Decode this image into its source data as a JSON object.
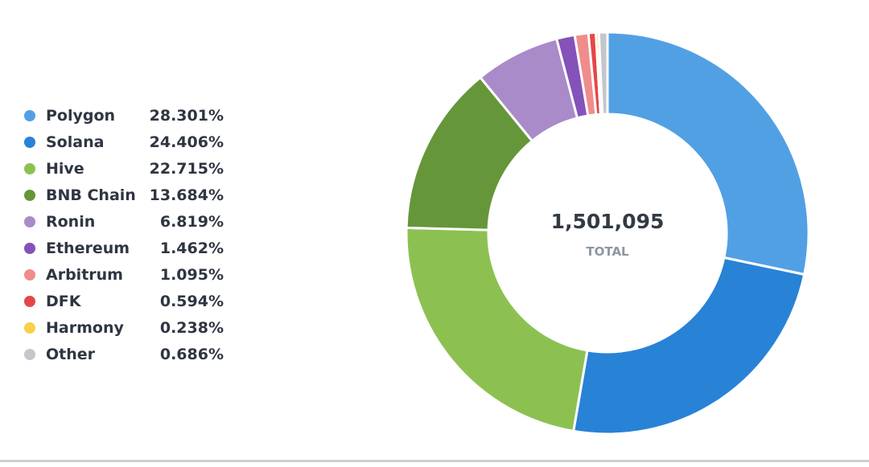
{
  "chart_data": {
    "type": "pie",
    "donut": true,
    "total_value": "1,501,095",
    "total_label": "TOTAL",
    "slices": [
      {
        "label": "Polygon",
        "percent_text": "28.301%",
        "value": 28.301,
        "color": "#52a0e4"
      },
      {
        "label": "Solana",
        "percent_text": "24.406%",
        "value": 24.406,
        "color": "#2882d6"
      },
      {
        "label": "Hive",
        "percent_text": "22.715%",
        "value": 22.715,
        "color": "#8cc152"
      },
      {
        "label": "BNB Chain",
        "percent_text": "13.684%",
        "value": 13.684,
        "color": "#66963a"
      },
      {
        "label": "Ronin",
        "percent_text": "6.819%",
        "value": 6.819,
        "color": "#a88bc8"
      },
      {
        "label": "Ethereum",
        "percent_text": "1.462%",
        "value": 1.462,
        "color": "#8452b8"
      },
      {
        "label": "Arbitrum",
        "percent_text": "1.095%",
        "value": 1.095,
        "color": "#f08c8c"
      },
      {
        "label": "DFK",
        "percent_text": "0.594%",
        "value": 0.594,
        "color": "#e64646"
      },
      {
        "label": "Harmony",
        "percent_text": "0.238%",
        "value": 0.238,
        "color": "#f8d04a"
      },
      {
        "label": "Other",
        "percent_text": "0.686%",
        "value": 0.686,
        "color": "#c3c6cb"
      }
    ],
    "legend_position": "left"
  }
}
